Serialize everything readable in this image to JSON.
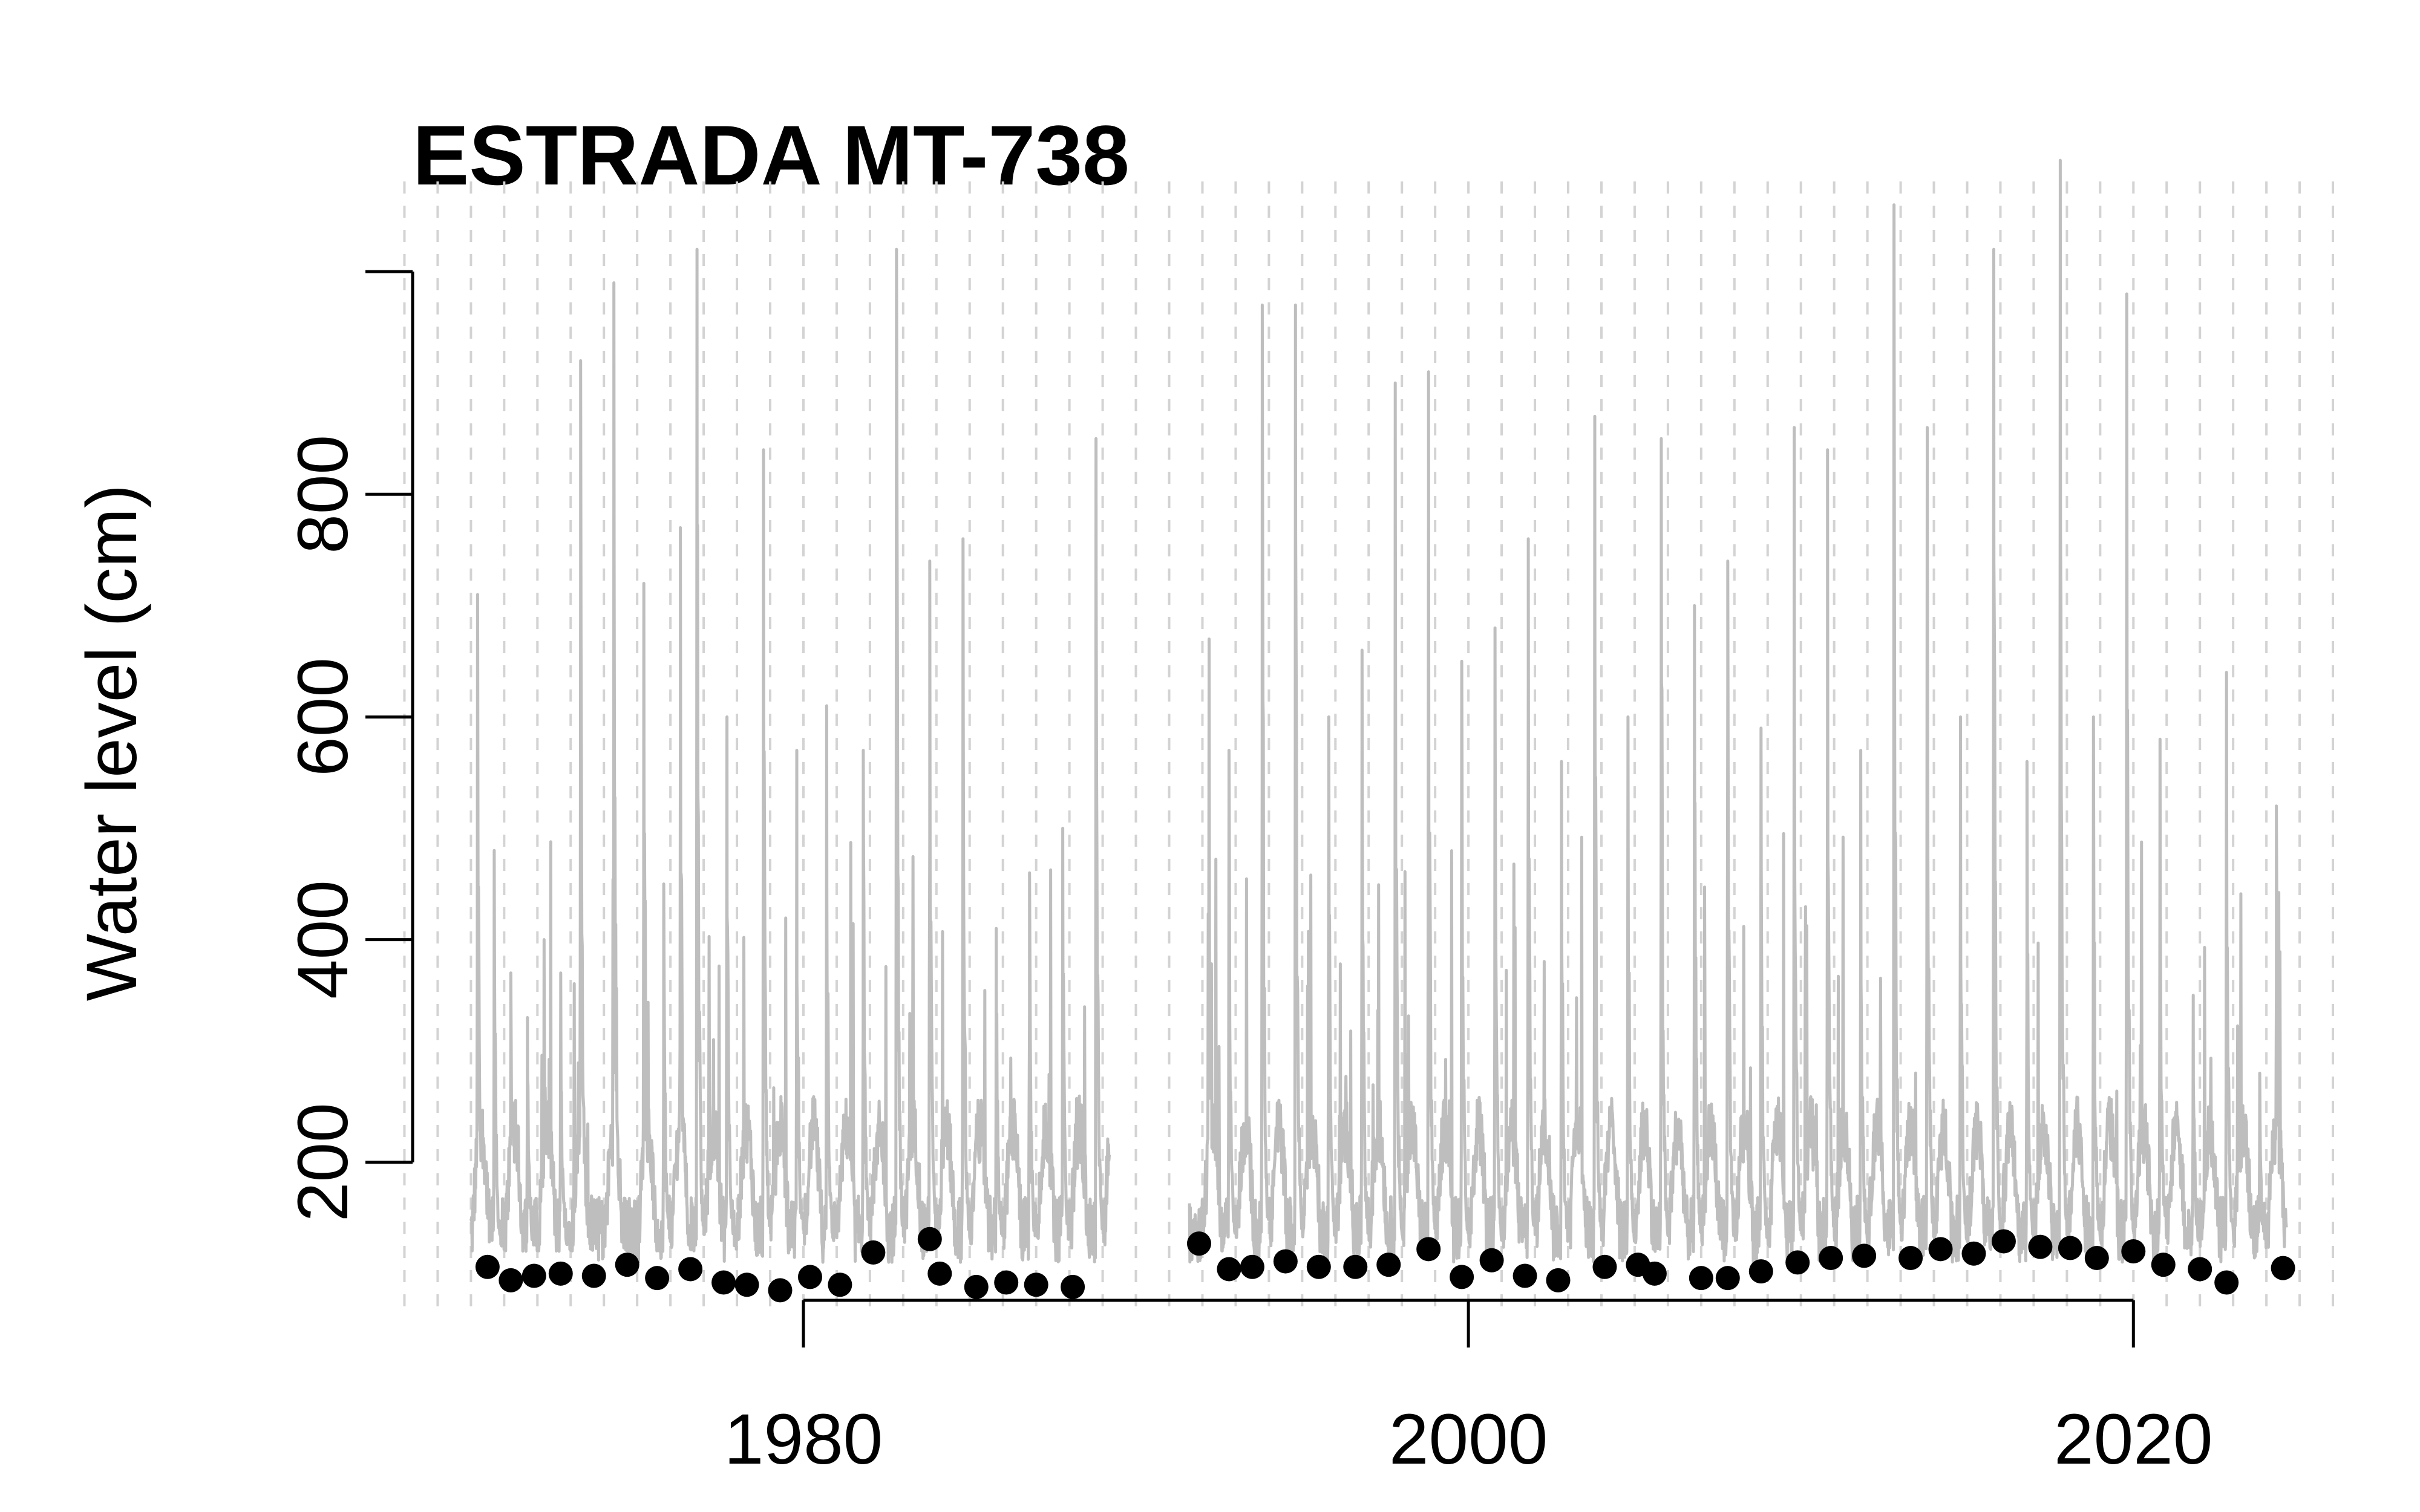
{
  "chart_data": {
    "type": "scatter",
    "title": "ESTRADA MT-738",
    "xlabel": "",
    "ylabel": "Water level (cm)",
    "xlim": [
      1967.3,
      2026.8
    ],
    "ylim": [
      76,
      1043
    ],
    "x_ticks": [
      1980,
      2000,
      2020
    ],
    "y_ticks": [
      200,
      400,
      600,
      800
    ],
    "grid": "vertical dashed lines at every year",
    "grid_years": [
      1968,
      2026
    ],
    "colors": {
      "line": "#bebebe",
      "points": "#000000",
      "grid": "#d3d3d3"
    },
    "series": [
      {
        "kind": "line",
        "annual_peaks": [
          [
            1970.2,
            710
          ],
          [
            1970.7,
            480
          ],
          [
            1971.2,
            370
          ],
          [
            1971.7,
            330
          ],
          [
            1972.2,
            400
          ],
          [
            1972.7,
            370
          ],
          [
            1973.3,
            920
          ],
          [
            1974.3,
            990
          ],
          [
            1975.2,
            720
          ],
          [
            1975.8,
            450
          ],
          [
            1976.3,
            770
          ],
          [
            1976.8,
            1020
          ],
          [
            1977.7,
            600
          ],
          [
            1978.8,
            840
          ],
          [
            1979.8,
            570
          ],
          [
            1980.7,
            610
          ],
          [
            1981.8,
            570
          ],
          [
            1982.8,
            1020
          ],
          [
            1983.8,
            740
          ],
          [
            1984.8,
            760
          ],
          [
            1985.8,
            410
          ],
          [
            1986.8,
            460
          ],
          [
            1987.8,
            500
          ],
          [
            1988.8,
            850
          ],
          [
            1992.2,
            670
          ],
          [
            1992.8,
            570
          ],
          [
            1993.8,
            970
          ],
          [
            1994.8,
            970
          ],
          [
            1995.8,
            600
          ],
          [
            1996.8,
            660
          ],
          [
            1997.8,
            900
          ],
          [
            1998.8,
            910
          ],
          [
            1999.8,
            650
          ],
          [
            2000.8,
            680
          ],
          [
            2001.8,
            760
          ],
          [
            2002.8,
            560
          ],
          [
            2003.8,
            870
          ],
          [
            2004.8,
            600
          ],
          [
            2005.8,
            850
          ],
          [
            2006.8,
            700
          ],
          [
            2007.8,
            740
          ],
          [
            2008.8,
            590
          ],
          [
            2009.8,
            860
          ],
          [
            2010.8,
            840
          ],
          [
            2011.8,
            570
          ],
          [
            2012.8,
            1060
          ],
          [
            2013.8,
            860
          ],
          [
            2014.8,
            600
          ],
          [
            2015.8,
            1020
          ],
          [
            2016.8,
            560
          ],
          [
            2017.8,
            1100
          ],
          [
            2018.8,
            600
          ],
          [
            2019.8,
            980
          ],
          [
            2020.8,
            580
          ],
          [
            2021.8,
            350
          ],
          [
            2022.8,
            640
          ],
          [
            2023.8,
            280
          ],
          [
            2024.3,
            520
          ]
        ],
        "gaps": [
          [
            1989.2,
            1991.6
          ]
        ]
      },
      {
        "kind": "points",
        "points": [
          [
            1970.5,
            106
          ],
          [
            1971.2,
            94
          ],
          [
            1971.9,
            98
          ],
          [
            1972.7,
            100
          ],
          [
            1973.7,
            98
          ],
          [
            1974.7,
            108
          ],
          [
            1975.6,
            96
          ],
          [
            1976.6,
            104
          ],
          [
            1977.6,
            92
          ],
          [
            1978.3,
            90
          ],
          [
            1979.3,
            85
          ],
          [
            1980.2,
            97
          ],
          [
            1981.1,
            90
          ],
          [
            1982.1,
            119
          ],
          [
            1983.8,
            131
          ],
          [
            1984.1,
            100
          ],
          [
            1985.2,
            88
          ],
          [
            1986.1,
            92
          ],
          [
            1987.0,
            90
          ],
          [
            1988.1,
            88
          ],
          [
            1991.9,
            127
          ],
          [
            1992.8,
            104
          ],
          [
            1993.5,
            106
          ],
          [
            1994.5,
            111
          ],
          [
            1995.5,
            106
          ],
          [
            1996.6,
            106
          ],
          [
            1997.6,
            108
          ],
          [
            1998.8,
            122
          ],
          [
            1999.8,
            97
          ],
          [
            2000.7,
            112
          ],
          [
            2001.7,
            98
          ],
          [
            2002.7,
            94
          ],
          [
            2004.1,
            106
          ],
          [
            2005.1,
            108
          ],
          [
            2005.6,
            100
          ],
          [
            2007.0,
            96
          ],
          [
            2007.8,
            96
          ],
          [
            2008.8,
            102
          ],
          [
            2009.9,
            110
          ],
          [
            2010.9,
            114
          ],
          [
            2011.9,
            116
          ],
          [
            2013.3,
            114
          ],
          [
            2014.2,
            122
          ],
          [
            2015.2,
            118
          ],
          [
            2016.1,
            129
          ],
          [
            2017.2,
            124
          ],
          [
            2018.1,
            123
          ],
          [
            2018.9,
            114
          ],
          [
            2020.0,
            120
          ],
          [
            2020.9,
            108
          ],
          [
            2022.0,
            104
          ],
          [
            2022.8,
            92
          ],
          [
            2024.5,
            105
          ]
        ]
      }
    ]
  }
}
